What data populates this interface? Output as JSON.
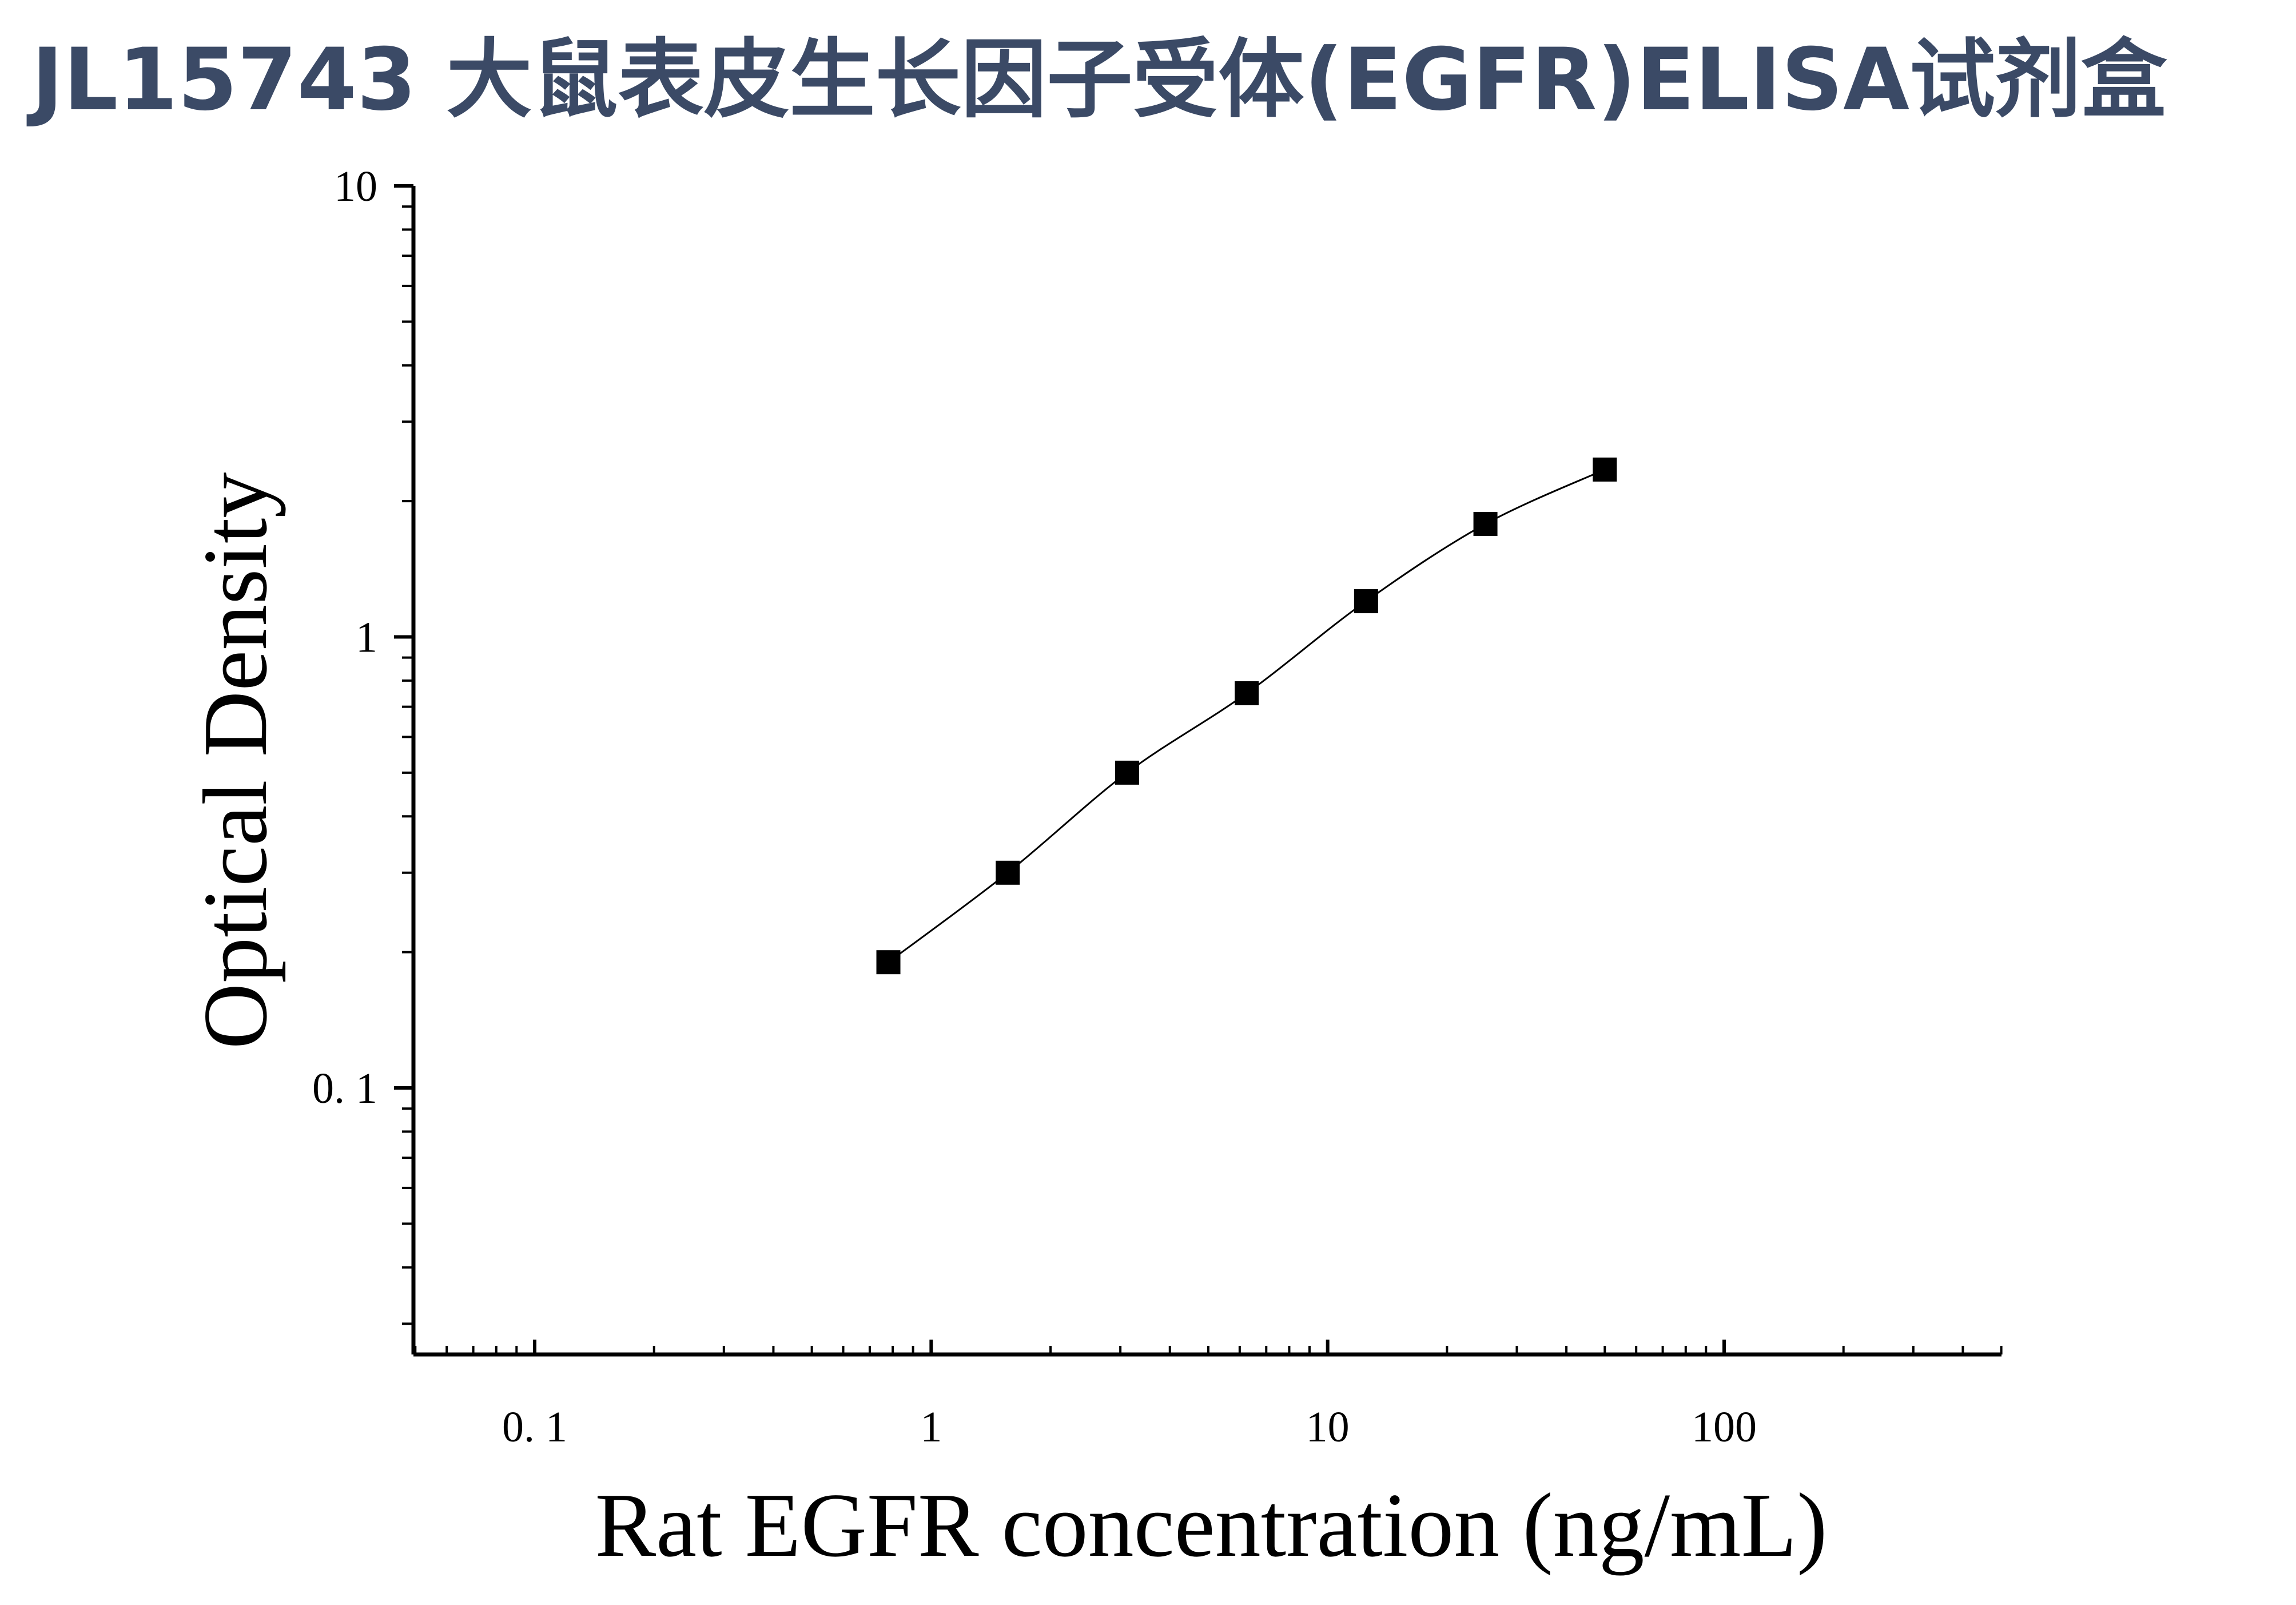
{
  "title": "JL15743 大鼠表皮生长因子受体(EGFR)ELISA试剂盒",
  "chart_data": {
    "type": "scatter",
    "xlabel": "Rat EGFR concentration (ng/mL)",
    "ylabel": "Optical Density",
    "xscale": "log",
    "yscale": "log",
    "xlim": [
      0.05,
      500
    ],
    "ylim": [
      0.025,
      10
    ],
    "x_ticks": [
      {
        "value": 0.1,
        "label": "0. 1"
      },
      {
        "value": 1,
        "label": "1"
      },
      {
        "value": 10,
        "label": "10"
      },
      {
        "value": 100,
        "label": "100"
      }
    ],
    "y_ticks": [
      {
        "value": 0.1,
        "label": "0. 1"
      },
      {
        "value": 1,
        "label": "1"
      },
      {
        "value": 10,
        "label": "10"
      }
    ],
    "marker": "square",
    "fit_line": true,
    "grid": false,
    "legend": "none",
    "colors": {
      "points": "#000000",
      "line": "#000000",
      "title": "#3b4a66"
    },
    "x": [
      0.78,
      1.56,
      3.12,
      6.25,
      12.5,
      25,
      50
    ],
    "y": [
      0.19,
      0.3,
      0.5,
      0.75,
      1.2,
      1.78,
      2.35
    ]
  }
}
